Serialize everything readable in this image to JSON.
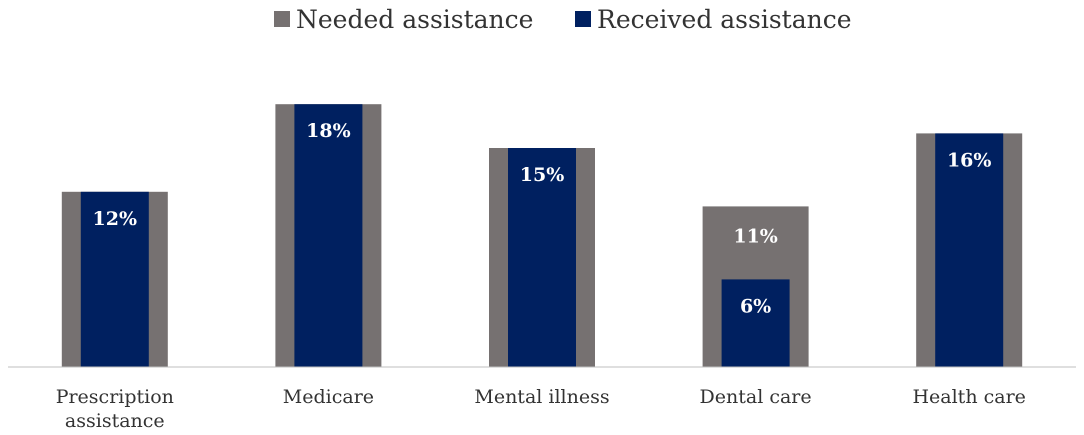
{
  "chart_data": {
    "type": "bar",
    "title": "",
    "xlabel": "",
    "ylabel": "",
    "ylim": [
      0,
      18
    ],
    "grid": false,
    "legend_position": "top-center",
    "categories": [
      [
        "Prescription",
        "assistance"
      ],
      [
        "Medicare"
      ],
      [
        "Mental illness"
      ],
      [
        "Dental care"
      ],
      [
        "Health care"
      ]
    ],
    "series": [
      {
        "name": "Needed assistance",
        "color": "#767171",
        "values": [
          12,
          18,
          15,
          11,
          16
        ],
        "labels": [
          "",
          "",
          "",
          "11%",
          ""
        ]
      },
      {
        "name": "Received assistance",
        "color": "#002060",
        "values": [
          12,
          18,
          15,
          6,
          16
        ],
        "labels": [
          "12%",
          "18%",
          "15%",
          "6%",
          "16%"
        ]
      }
    ]
  }
}
